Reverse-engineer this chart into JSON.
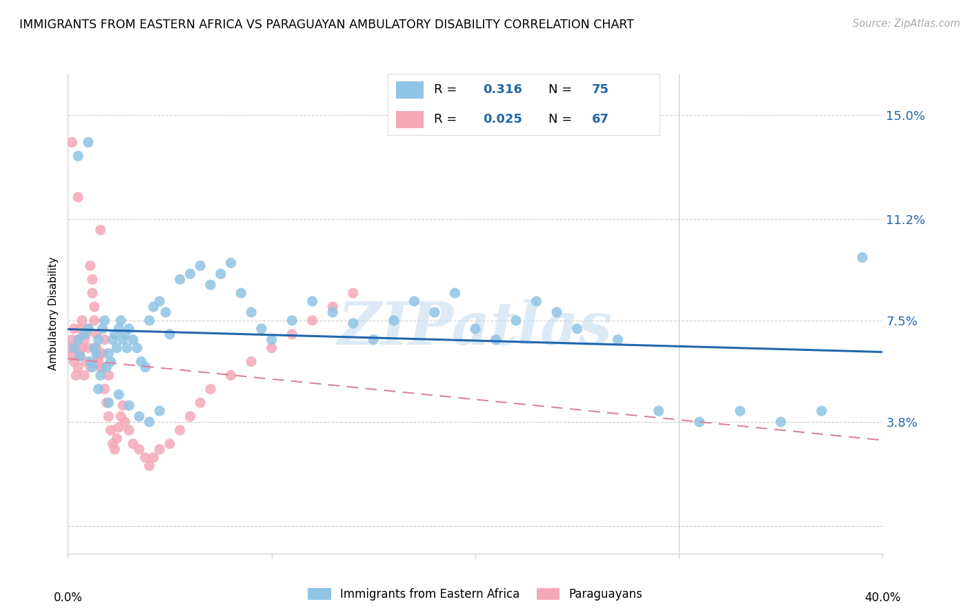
{
  "title": "IMMIGRANTS FROM EASTERN AFRICA VS PARAGUAYAN AMBULATORY DISABILITY CORRELATION CHART",
  "source": "Source: ZipAtlas.com",
  "ylabel": "Ambulatory Disability",
  "yticks": [
    0.0,
    0.038,
    0.075,
    0.112,
    0.15
  ],
  "ytick_labels": [
    "",
    "3.8%",
    "7.5%",
    "11.2%",
    "15.0%"
  ],
  "xlim": [
    0.0,
    0.4
  ],
  "ylim": [
    -0.01,
    0.165
  ],
  "blue_R": 0.316,
  "blue_N": 75,
  "pink_R": 0.025,
  "pink_N": 67,
  "blue_color": "#90c4e4",
  "pink_color": "#f4a8b8",
  "blue_line_color": "#2166ac",
  "pink_line_color": "#d9829a",
  "watermark": "ZIPatlas",
  "watermark_color": "#c5ddf0",
  "legend_label_blue": "Immigrants from Eastern Africa",
  "legend_label_pink": "Paraguayans",
  "blue_scatter_x": [
    0.003,
    0.005,
    0.006,
    0.008,
    0.01,
    0.011,
    0.012,
    0.013,
    0.014,
    0.015,
    0.016,
    0.017,
    0.018,
    0.019,
    0.02,
    0.021,
    0.022,
    0.023,
    0.024,
    0.025,
    0.026,
    0.027,
    0.028,
    0.029,
    0.03,
    0.032,
    0.034,
    0.036,
    0.038,
    0.04,
    0.042,
    0.045,
    0.048,
    0.05,
    0.055,
    0.06,
    0.065,
    0.07,
    0.075,
    0.08,
    0.085,
    0.09,
    0.095,
    0.1,
    0.11,
    0.12,
    0.13,
    0.14,
    0.15,
    0.16,
    0.17,
    0.18,
    0.19,
    0.2,
    0.21,
    0.22,
    0.23,
    0.24,
    0.25,
    0.27,
    0.29,
    0.31,
    0.33,
    0.35,
    0.37,
    0.39,
    0.005,
    0.01,
    0.015,
    0.02,
    0.025,
    0.03,
    0.035,
    0.04,
    0.045
  ],
  "blue_scatter_y": [
    0.065,
    0.068,
    0.062,
    0.07,
    0.072,
    0.06,
    0.058,
    0.065,
    0.063,
    0.068,
    0.055,
    0.072,
    0.075,
    0.058,
    0.063,
    0.06,
    0.068,
    0.07,
    0.065,
    0.072,
    0.075,
    0.068,
    0.07,
    0.065,
    0.072,
    0.068,
    0.065,
    0.06,
    0.058,
    0.075,
    0.08,
    0.082,
    0.078,
    0.07,
    0.09,
    0.092,
    0.095,
    0.088,
    0.092,
    0.096,
    0.085,
    0.078,
    0.072,
    0.068,
    0.075,
    0.082,
    0.078,
    0.074,
    0.068,
    0.075,
    0.082,
    0.078,
    0.085,
    0.072,
    0.068,
    0.075,
    0.082,
    0.078,
    0.072,
    0.068,
    0.042,
    0.038,
    0.042,
    0.038,
    0.042,
    0.098,
    0.135,
    0.14,
    0.05,
    0.045,
    0.048,
    0.044,
    0.04,
    0.038,
    0.042
  ],
  "pink_scatter_x": [
    0.001,
    0.002,
    0.002,
    0.003,
    0.003,
    0.004,
    0.004,
    0.005,
    0.005,
    0.006,
    0.006,
    0.007,
    0.007,
    0.008,
    0.008,
    0.009,
    0.009,
    0.01,
    0.01,
    0.011,
    0.011,
    0.012,
    0.012,
    0.013,
    0.013,
    0.014,
    0.014,
    0.015,
    0.015,
    0.016,
    0.016,
    0.017,
    0.017,
    0.018,
    0.018,
    0.019,
    0.02,
    0.02,
    0.021,
    0.022,
    0.023,
    0.024,
    0.025,
    0.026,
    0.027,
    0.028,
    0.03,
    0.032,
    0.035,
    0.038,
    0.04,
    0.042,
    0.045,
    0.05,
    0.055,
    0.06,
    0.065,
    0.07,
    0.08,
    0.09,
    0.1,
    0.11,
    0.12,
    0.13,
    0.14,
    0.002,
    0.005
  ],
  "pink_scatter_y": [
    0.065,
    0.062,
    0.068,
    0.06,
    0.072,
    0.065,
    0.055,
    0.068,
    0.058,
    0.072,
    0.062,
    0.075,
    0.065,
    0.068,
    0.055,
    0.07,
    0.06,
    0.065,
    0.072,
    0.058,
    0.095,
    0.09,
    0.085,
    0.08,
    0.075,
    0.065,
    0.07,
    0.062,
    0.06,
    0.058,
    0.108,
    0.063,
    0.058,
    0.068,
    0.05,
    0.045,
    0.055,
    0.04,
    0.035,
    0.03,
    0.028,
    0.032,
    0.036,
    0.04,
    0.044,
    0.038,
    0.035,
    0.03,
    0.028,
    0.025,
    0.022,
    0.025,
    0.028,
    0.03,
    0.035,
    0.04,
    0.045,
    0.05,
    0.055,
    0.06,
    0.065,
    0.07,
    0.075,
    0.08,
    0.085,
    0.14,
    0.12
  ]
}
